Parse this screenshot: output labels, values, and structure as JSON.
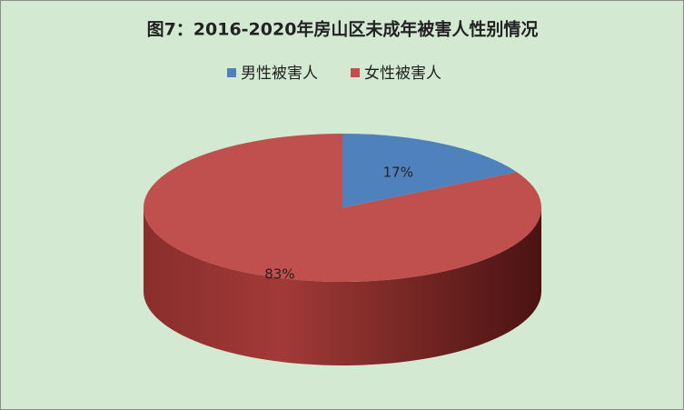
{
  "chart_data": {
    "type": "pie",
    "title": "图7：2016-2020年房山区未成年被害人性别情况",
    "categories": [
      "男性被害人",
      "女性被害人"
    ],
    "values": [
      17,
      83
    ],
    "value_labels": [
      "17%",
      "83%"
    ],
    "colors": [
      "#4f81bd",
      "#c0504d"
    ],
    "legend": "top"
  }
}
